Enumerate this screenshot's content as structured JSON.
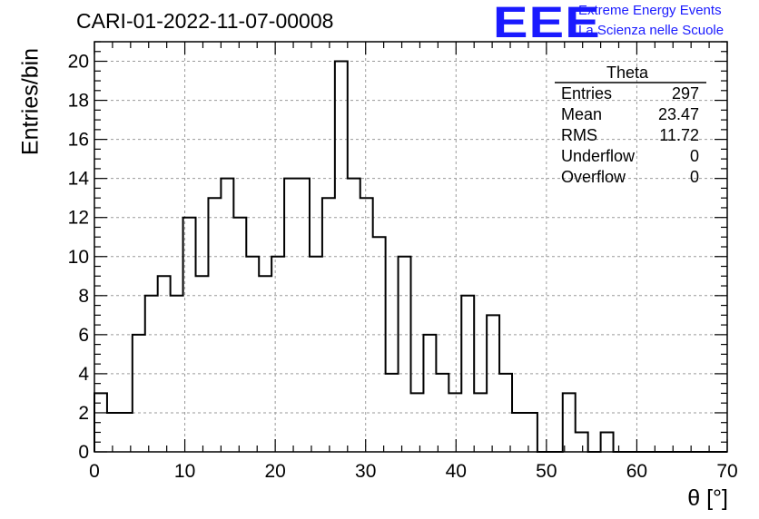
{
  "header": {
    "title": "CARI-01-2022-11-07-00008",
    "logo": "EEE",
    "logo_line1": "Extreme Energy Events",
    "logo_line2": "La Scienza nelle Scuole",
    "logo_color": "#1a1aff"
  },
  "stats": {
    "name": "Theta",
    "rows": [
      {
        "label": "Entries",
        "value": "297"
      },
      {
        "label": "Mean",
        "value": "23.47"
      },
      {
        "label": "RMS",
        "value": "11.72"
      },
      {
        "label": "Underflow",
        "value": "0"
      },
      {
        "label": "Overflow",
        "value": "0"
      }
    ]
  },
  "chart_data": {
    "type": "bar",
    "style": "step-histogram",
    "title": "CARI-01-2022-11-07-00008",
    "xlabel": "θ [°]",
    "ylabel": "Entries/bin",
    "xlim": [
      0,
      70
    ],
    "ylim": [
      0,
      21
    ],
    "grid": true,
    "xticks": [
      0,
      10,
      20,
      30,
      40,
      50,
      60,
      70
    ],
    "yticks": [
      0,
      2,
      4,
      6,
      8,
      10,
      12,
      14,
      16,
      18,
      20
    ],
    "bin_width": 1.4,
    "x_start": 0,
    "values": [
      3,
      2,
      2,
      6,
      8,
      9,
      8,
      12,
      9,
      13,
      14,
      12,
      10,
      9,
      10,
      14,
      14,
      10,
      13,
      20,
      14,
      13,
      11,
      4,
      10,
      3,
      6,
      4,
      3,
      8,
      3,
      7,
      4,
      2,
      2,
      0,
      0,
      3,
      1,
      0,
      1,
      0,
      0,
      0,
      0,
      0,
      0,
      0,
      0,
      0
    ]
  }
}
